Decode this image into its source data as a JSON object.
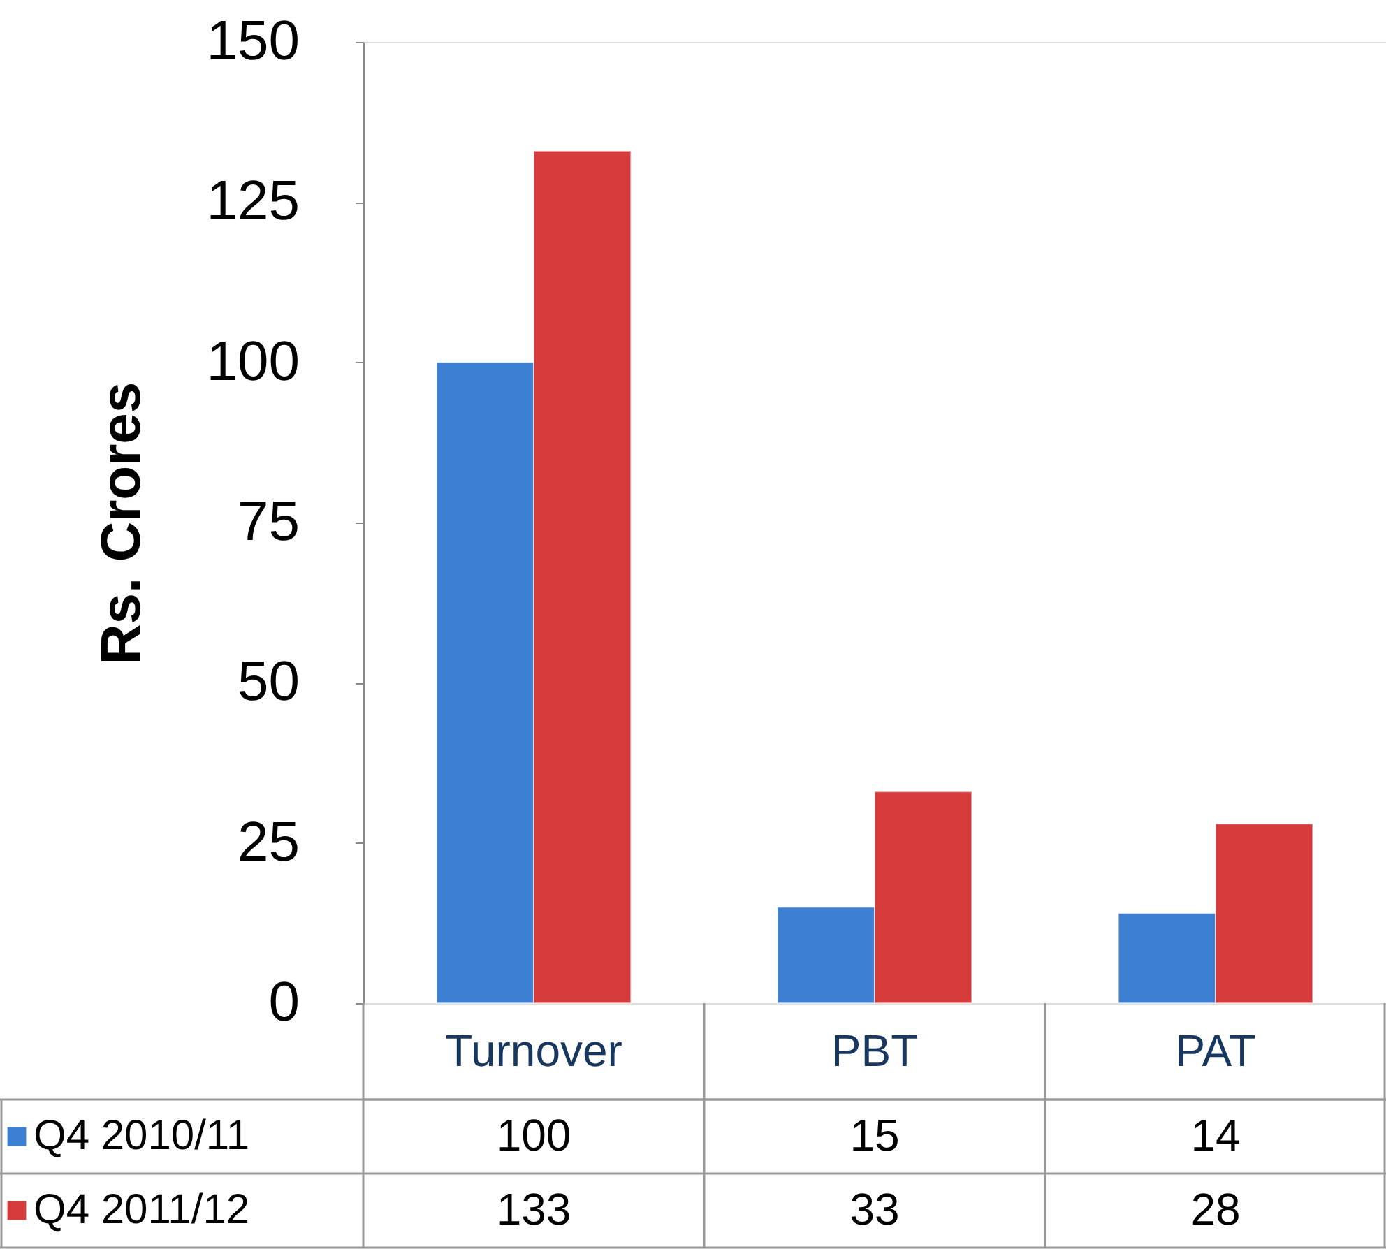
{
  "chart_data": {
    "type": "bar",
    "ylabel": "Rs. Crores",
    "categories": [
      "Turnover",
      "PBT",
      "PAT"
    ],
    "series": [
      {
        "name": "Q4 2010/11",
        "color": "#3d7fd3",
        "values": [
          100,
          15,
          14
        ]
      },
      {
        "name": "Q4 2011/12",
        "color": "#d63c3c",
        "values": [
          133,
          33,
          28
        ]
      }
    ],
    "ylim": [
      0,
      150
    ],
    "yticks": [
      0,
      25,
      50,
      75,
      100,
      125,
      150
    ],
    "grid": false,
    "legend": "bottom left",
    "data_labels": true
  }
}
